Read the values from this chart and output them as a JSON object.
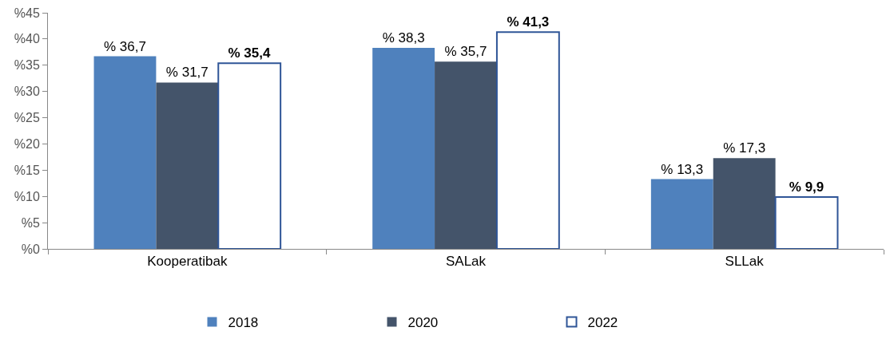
{
  "chart_data": {
    "type": "bar",
    "categories": [
      "Kooperatibak",
      "SALak",
      "SLLak"
    ],
    "series": [
      {
        "name": "2018",
        "color": "#4f81bd",
        "values": [
          36.7,
          38.3,
          13.3
        ],
        "value_labels": [
          "% 36,7",
          "% 38,3",
          "% 13,3"
        ]
      },
      {
        "name": "2020",
        "color": "#44546a",
        "values": [
          31.7,
          35.7,
          17.3
        ],
        "value_labels": [
          "% 31,7",
          "% 35,7",
          "% 17,3"
        ]
      },
      {
        "name": "2022",
        "color": "#ffffff",
        "values": [
          35.4,
          41.3,
          9.9
        ],
        "value_labels": [
          "% 35,4",
          "% 41,3",
          "% 9,9"
        ]
      }
    ],
    "ylim": [
      0,
      45
    ],
    "yticks": [
      {
        "value": 0,
        "label": "%0"
      },
      {
        "value": 5,
        "label": "%5"
      },
      {
        "value": 10,
        "label": "%10"
      },
      {
        "value": 15,
        "label": "%15"
      },
      {
        "value": 20,
        "label": "%20"
      },
      {
        "value": 25,
        "label": "%25"
      },
      {
        "value": 30,
        "label": "%30"
      },
      {
        "value": 35,
        "label": "%35"
      },
      {
        "value": 40,
        "label": "%40"
      },
      {
        "value": 45,
        "label": "%45"
      }
    ],
    "legend": "bottom"
  }
}
